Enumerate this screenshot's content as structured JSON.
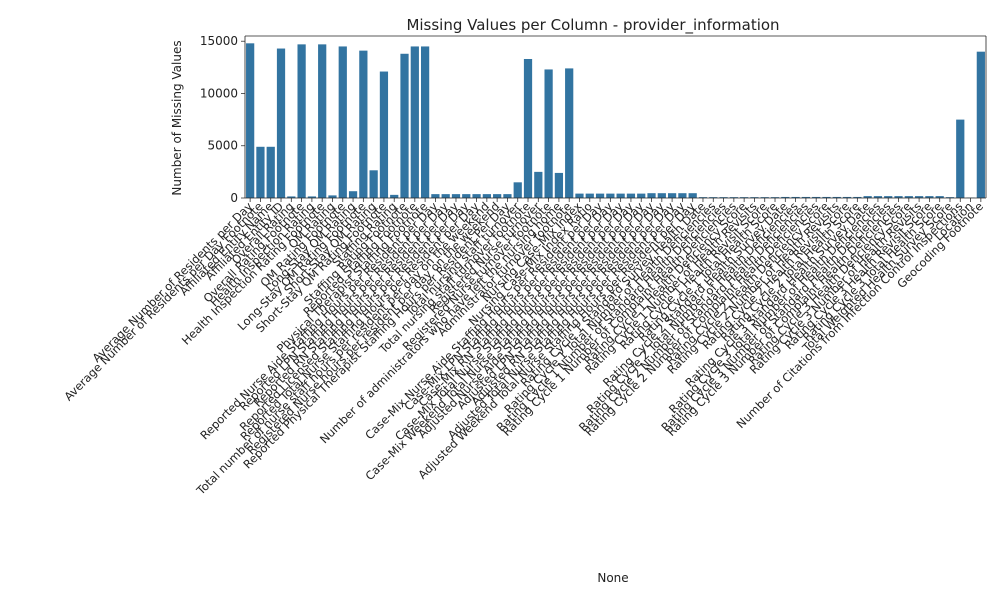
{
  "chart_data": {
    "type": "bar",
    "title": "Missing Values per Column - provider_information",
    "xlabel": "None",
    "ylabel": "Number of Missing Values",
    "ylim": [
      0,
      15500
    ],
    "yticks": [
      0,
      5000,
      10000,
      15000
    ],
    "grid": false,
    "legend": "none",
    "bar_color": "#3274a1",
    "categories": [
      "Average Number of Residents per Day",
      "Average Number of Residents per Day Footnote",
      "Affiliated Entity Name",
      "Affiliated Entity ID",
      "Overall Rating",
      "Overall Rating Footnote",
      "Health Inspection Rating",
      "Health Inspection Rating Footnote",
      "QM Rating",
      "QM Rating Footnote",
      "Long-Stay QM Rating",
      "Long-Stay QM Rating Footnote",
      "Short-Stay QM Rating",
      "Short-Stay QM Rating Footnote",
      "Staffing Rating",
      "Staffing Rating Footnote",
      "Reported Staffing Footnote",
      "Physical Therapist Staffing Footnote",
      "Reported Nurse Aide Staffing Hours per Resident per Day",
      "Reported LPN Staffing Hours per Resident per Day",
      "Reported RN Staffing Hours per Resident per Day",
      "Reported Licensed Staffing Hours per Resident per Day",
      "Reported Total Nurse Staffing Hours per Resident per Day",
      "Total number of nurse staff hours per resident per day on the weekend",
      "Registered Nurse hours per resident per day on the weekend",
      "Reported Physical Therapist Staffing Hours per Resident Per Day",
      "Total nursing staff turnover",
      "Total nursing staff turnover footnote",
      "Registered Nurse turnover",
      "Registered Nurse turnover footnote",
      "Number of administrators who have left the nursing home",
      "Administrator turnover footnote",
      "Nursing Case-Mix Index",
      "Nursing Case-Mix Index Ratio",
      "Case-Mix Nurse Aide Staffing Hours per Resident per Day",
      "Case-Mix LPN Staffing Hours per Resident per Day",
      "Case-Mix RN Staffing Hours per Resident per Day",
      "Case-Mix Total Nurse Staffing Hours per Resident per Day",
      "Case-Mix Weekend Total Nurse Staffing Hours per Resident per Day",
      "Adjusted Nurse Aide Staffing Hours per Resident per Day",
      "Adjusted LPN Staffing Hours per Resident per Day",
      "Adjusted RN Staffing Hours per Resident per Day",
      "Adjusted Total Nurse Staffing Hours per Resident per Day",
      "Adjusted Weekend Total Nurse Staffing Hours per Resident per Day",
      "Rating Cycle 1 Standard Survey Health Date",
      "Rating Cycle 1 Total Number of Health Deficiencies",
      "Rating Cycle 1 Number of Standard Health Deficiencies",
      "Rating Cycle 1 Number of Complaint Health Deficiencies",
      "Rating Cycle 1 Health Deficiency Score",
      "Rating Cycle 1 Number of Health Revisits",
      "Rating Cycle 1 Health Revisit Score",
      "Rating Cycle 1 Total Health Score",
      "Rating Cycle 2 Standard Health Survey Date",
      "Rating Cycle 2 Total Number of Health Deficiencies",
      "Rating Cycle 2 Number of Standard Health Deficiencies",
      "Rating Cycle 2 Number of Complaint Health Deficiencies",
      "Rating Cycle 2 Health Deficiency Score",
      "Rating Cycle 2 Number of Health Revisits",
      "Rating Cycle 2 Health Revisit Score",
      "Rating Cycle 2 Total Health Score",
      "Rating Cycle 3 Standard Health Survey Date",
      "Rating Cycle 3 Total Number of Health Deficiencies",
      "Rating Cycle 3 Number of Standard Health Deficiencies",
      "Rating Cycle 3 Number of Complaint Health Deficiencies",
      "Rating Cycle 3 Health Deficiency Score",
      "Rating Cycle 3 Number of Health Revisits",
      "Rating Cycle 3 Health Revisit Score",
      "Rating Cycle 3 Total Health Score",
      "Total Weighted Health Survey Score",
      "Number of Citations from Infection Control Inspections",
      "Location",
      "Geocoding Footnote"
    ],
    "values": [
      14800,
      4900,
      4900,
      14300,
      150,
      14700,
      150,
      14700,
      250,
      14500,
      650,
      14100,
      2650,
      12100,
      300,
      13800,
      14500,
      14500,
      370,
      370,
      370,
      370,
      370,
      370,
      370,
      370,
      1500,
      13300,
      2500,
      12300,
      2400,
      12400,
      420,
      420,
      420,
      420,
      420,
      420,
      420,
      460,
      460,
      460,
      460,
      460,
      80,
      80,
      80,
      80,
      80,
      80,
      80,
      80,
      100,
      100,
      100,
      100,
      100,
      100,
      100,
      100,
      180,
      180,
      180,
      180,
      180,
      180,
      180,
      180,
      80,
      7500,
      40,
      14000
    ]
  }
}
